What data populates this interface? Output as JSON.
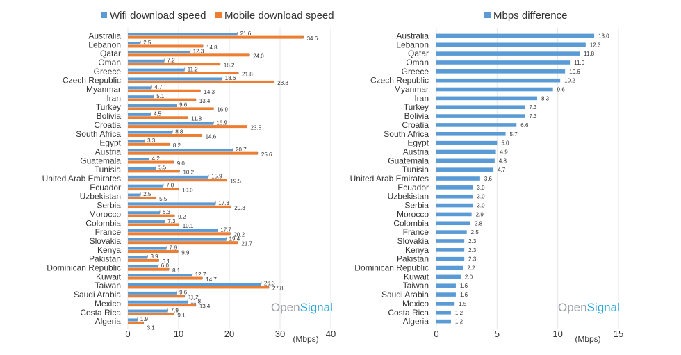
{
  "colors": {
    "wifi": "#5b9bd5",
    "mobile": "#ed7d31",
    "difference": "#5b9bd5"
  },
  "brand": {
    "part1": "Open",
    "part2": "Signal"
  },
  "chart_data": [
    {
      "type": "bar",
      "orientation": "horizontal",
      "categories": [
        "Australia",
        "Lebanon",
        "Qatar",
        "Oman",
        "Greece",
        "Czech Republic",
        "Myanmar",
        "Iran",
        "Turkey",
        "Bolivia",
        "Croatia",
        "South Africa",
        "Egypt",
        "Austria",
        "Guatemala",
        "Tunisia",
        "United Arab Emirates",
        "Ecuador",
        "Uzbekistan",
        "Serbia",
        "Morocco",
        "Colombia",
        "France",
        "Slovakia",
        "Kenya",
        "Pakistan",
        "Dominican Republic",
        "Kuwait",
        "Taiwan",
        "Saudi Arabia",
        "Mexico",
        "Costa Rica",
        "Algeria"
      ],
      "series": [
        {
          "name": "Wifi download speed",
          "values": [
            21.6,
            2.5,
            12.3,
            7.2,
            11.2,
            18.6,
            4.7,
            5.1,
            9.6,
            4.5,
            16.9,
            8.8,
            3.3,
            20.7,
            4.2,
            5.5,
            15.9,
            7.0,
            2.5,
            17.3,
            6.3,
            7.3,
            17.7,
            19.4,
            7.6,
            3.9,
            6.0,
            12.7,
            26.3,
            9.6,
            11.8,
            7.9,
            1.9
          ]
        },
        {
          "name": "Mobile download speed",
          "values": [
            34.6,
            14.8,
            24.0,
            18.2,
            21.8,
            28.8,
            14.3,
            13.4,
            16.9,
            11.8,
            23.5,
            14.6,
            8.2,
            25.6,
            9.0,
            10.2,
            19.5,
            10.0,
            5.5,
            20.3,
            9.2,
            10.1,
            20.2,
            21.7,
            9.9,
            6.1,
            8.1,
            14.7,
            27.8,
            11.2,
            13.4,
            9.1,
            3.1
          ]
        }
      ],
      "xlim": [
        0,
        40
      ],
      "xticks": [
        0,
        10,
        20,
        30,
        40
      ],
      "xlabel": "(Mbps)",
      "grid": true,
      "legend": "top"
    },
    {
      "type": "bar",
      "orientation": "horizontal",
      "categories": [
        "Australia",
        "Lebanon",
        "Qatar",
        "Oman",
        "Greece",
        "Czech Republic",
        "Myanmar",
        "Iran",
        "Turkey",
        "Bolivia",
        "Croatia",
        "South Africa",
        "Egypt",
        "Austria",
        "Guatemala",
        "Tunisia",
        "United Arab Emirates",
        "Ecuador",
        "Uzbekistan",
        "Serbia",
        "Morocco",
        "Colombia",
        "France",
        "Slovakia",
        "Kenya",
        "Pakistan",
        "Dominican Republic",
        "Kuwait",
        "Taiwan",
        "Saudi Arabia",
        "Mexico",
        "Costa Rica",
        "Algeria"
      ],
      "series": [
        {
          "name": "Mbps difference",
          "values": [
            13.0,
            12.3,
            11.8,
            11.0,
            10.6,
            10.2,
            9.6,
            8.3,
            7.3,
            7.3,
            6.6,
            5.7,
            5.0,
            4.9,
            4.8,
            4.7,
            3.6,
            3.0,
            3.0,
            3.0,
            2.9,
            2.8,
            2.5,
            2.3,
            2.3,
            2.3,
            2.2,
            2.0,
            1.6,
            1.6,
            1.5,
            1.2,
            1.2
          ]
        }
      ],
      "xlim": [
        0,
        15
      ],
      "xticks": [
        0,
        5,
        10,
        15
      ],
      "xlabel": "(Mbps)",
      "grid": true,
      "legend": "top"
    }
  ]
}
